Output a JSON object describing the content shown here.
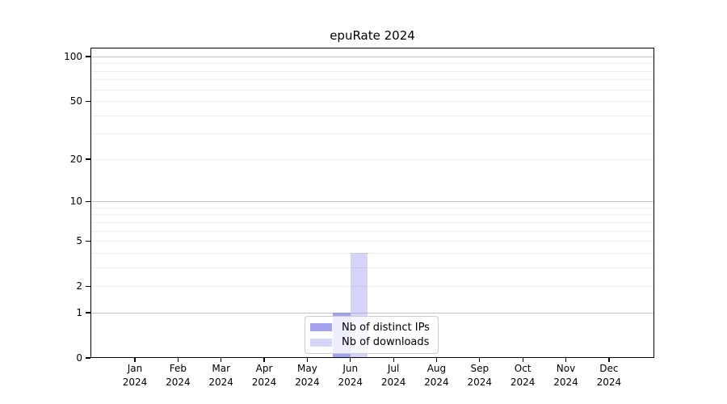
{
  "chart_data": {
    "type": "bar",
    "title": "epuRate 2024",
    "categories": [
      {
        "month": "Jan",
        "year": "2024"
      },
      {
        "month": "Feb",
        "year": "2024"
      },
      {
        "month": "Mar",
        "year": "2024"
      },
      {
        "month": "Apr",
        "year": "2024"
      },
      {
        "month": "May",
        "year": "2024"
      },
      {
        "month": "Jun",
        "year": "2024"
      },
      {
        "month": "Jul",
        "year": "2024"
      },
      {
        "month": "Aug",
        "year": "2024"
      },
      {
        "month": "Sep",
        "year": "2024"
      },
      {
        "month": "Oct",
        "year": "2024"
      },
      {
        "month": "Nov",
        "year": "2024"
      },
      {
        "month": "Dec",
        "year": "2024"
      }
    ],
    "series": [
      {
        "name": "Nb of distinct IPs",
        "color": "rgba(128,128,230,0.72)",
        "values": [
          0,
          0,
          0,
          0,
          0,
          1,
          0,
          0,
          0,
          0,
          0,
          0
        ]
      },
      {
        "name": "Nb of downloads",
        "color": "rgba(128,128,230,0.33)",
        "values": [
          0,
          0,
          0,
          0,
          0,
          4,
          0,
          0,
          0,
          0,
          0,
          0
        ]
      }
    ],
    "yscale": "log1p",
    "ylim": [
      0,
      100
    ],
    "y_ticks": [
      0,
      1,
      2,
      5,
      10,
      20,
      50,
      100
    ],
    "y_major_grid": [
      1,
      10,
      100
    ],
    "y_minor_grid": [
      2,
      3,
      4,
      5,
      6,
      7,
      8,
      9,
      20,
      30,
      40,
      50,
      60,
      70,
      80,
      90
    ],
    "grid": true,
    "legend_position": "lower center",
    "colors": {
      "major_grid": "#c3c3c3",
      "minor_grid": "#ececec",
      "axis": "#000000",
      "text": "#000000",
      "legend_border": "#cccccc",
      "legend_bg": "rgba(255,255,255,0.8)"
    }
  }
}
